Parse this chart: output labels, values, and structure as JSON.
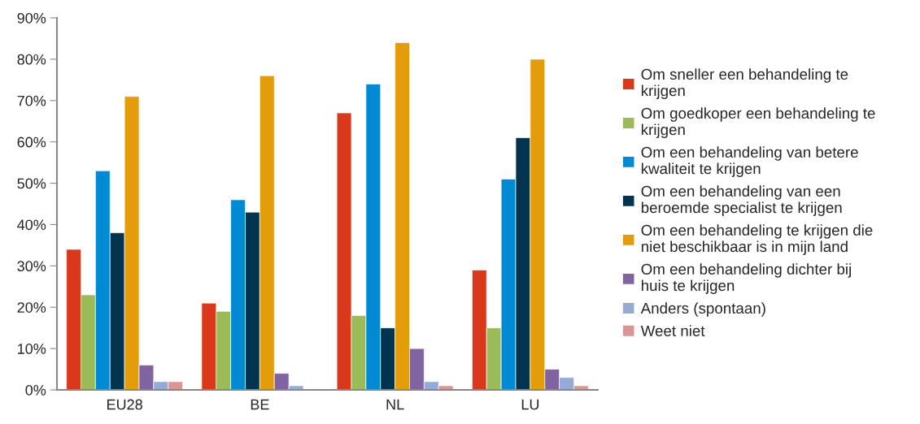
{
  "chart_data": {
    "type": "bar",
    "categories": [
      "EU28",
      "BE",
      "NL",
      "LU"
    ],
    "series": [
      {
        "name": "Om sneller een behandeling te\nkrijgen",
        "color": "#d9391a",
        "values": [
          34,
          21,
          67,
          29
        ]
      },
      {
        "name": "Om goedkoper een behandeling te\nkrijgen",
        "color": "#9bbb59",
        "values": [
          23,
          19,
          18,
          15
        ]
      },
      {
        "name": "Om een behandeling van betere\nkwaliteit te krijgen",
        "color": "#008ad4",
        "values": [
          53,
          46,
          74,
          51
        ]
      },
      {
        "name": "Om een behandeling van een\nberoemde specialist te krijgen",
        "color": "#02344f",
        "values": [
          38,
          43,
          15,
          61
        ]
      },
      {
        "name": "Om een behandeling te krijgen die\nniet beschikbaar is in mijn land",
        "color": "#e39d0b",
        "values": [
          71,
          76,
          84,
          80
        ]
      },
      {
        "name": "Om een behandeling dichter bij\nhuis te krijgen",
        "color": "#8064a2",
        "values": [
          6,
          4,
          10,
          5
        ]
      },
      {
        "name": "Anders (spontaan)",
        "color": "#95abd5",
        "values": [
          2,
          1,
          2,
          3
        ]
      },
      {
        "name": "Weet niet",
        "color": "#d99694",
        "values": [
          2,
          null,
          1,
          1
        ]
      }
    ],
    "ylim": [
      0,
      90
    ],
    "yticks": [
      {
        "value": 0,
        "label": "0%"
      },
      {
        "value": 10,
        "label": "10%"
      },
      {
        "value": 20,
        "label": "20%"
      },
      {
        "value": 30,
        "label": "30%"
      },
      {
        "value": 40,
        "label": "40%"
      },
      {
        "value": 50,
        "label": "50%"
      },
      {
        "value": 60,
        "label": "60%"
      },
      {
        "value": 70,
        "label": "70%"
      },
      {
        "value": 80,
        "label": "80%"
      },
      {
        "value": 90,
        "label": "90%"
      }
    ],
    "grid": false,
    "legend": "right"
  }
}
